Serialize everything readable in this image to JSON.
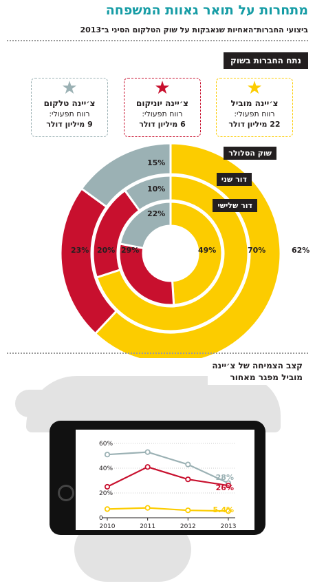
{
  "header": {
    "title": "מתחרות על תואר גאוות המשפחה",
    "subtitle": "ביצועי החברות־האחיות שנאבקות על שוק הטלקום הסיני ב־2013"
  },
  "section_market": {
    "title": "נתח החברות בשוק"
  },
  "companies": [
    {
      "name": "צ׳יינה מוביל",
      "profit_label": "רווח תפעולי:",
      "profit_value": "22 מיליון דולר",
      "color": "#fccc00"
    },
    {
      "name": "צ׳יינה יוניקום",
      "profit_label": "רווח תפעולי:",
      "profit_value": "6 מיליון דולר",
      "color": "#c8102e"
    },
    {
      "name": "צ׳יינה טלקום",
      "profit_label": "רווח תפעולי:",
      "profit_value": "9 מיליון דולר",
      "color": "#9bb1b4"
    }
  ],
  "section_growth": {
    "line1": "קצב הצמיחה של צ׳יינה",
    "line2": "מוביל מפגר מאחור"
  },
  "chart_data": [
    {
      "type": "pie",
      "rings": [
        {
          "name": "שוק הסלולר",
          "values": [
            62,
            23,
            15
          ],
          "labels": [
            "62%",
            "23%",
            "15%"
          ]
        },
        {
          "name": "דור שני",
          "values": [
            70,
            20,
            10
          ],
          "labels": [
            "70%",
            "20%",
            "10%"
          ]
        },
        {
          "name": "דור שלישי",
          "values": [
            49,
            29,
            22
          ],
          "labels": [
            "49%",
            "29%",
            "22%"
          ]
        }
      ],
      "categories": [
        "צ׳יינה מוביל",
        "צ׳יינה יוניקום",
        "צ׳יינה טלקום"
      ],
      "colors": [
        "#fccc00",
        "#c8102e",
        "#9bb1b4"
      ]
    },
    {
      "type": "line",
      "x": [
        2010,
        2011,
        2012,
        2013
      ],
      "x_labels": [
        "2010",
        "2011",
        "2012",
        "2013"
      ],
      "ylim": [
        0,
        60
      ],
      "y_ticks": [
        0,
        20,
        40,
        60
      ],
      "y_tick_labels": [
        "0",
        "20%",
        "40%",
        "60%"
      ],
      "grid": true,
      "series": [
        {
          "values": [
            51,
            53,
            43,
            28
          ],
          "end_label": "28%",
          "color": "#9bb1b4"
        },
        {
          "values": [
            25,
            41,
            31,
            26
          ],
          "end_label": "26%",
          "color": "#c8102e"
        },
        {
          "values": [
            7,
            8,
            6,
            5.4
          ],
          "end_label": "5.4%",
          "color": "#fccc00"
        }
      ]
    }
  ]
}
